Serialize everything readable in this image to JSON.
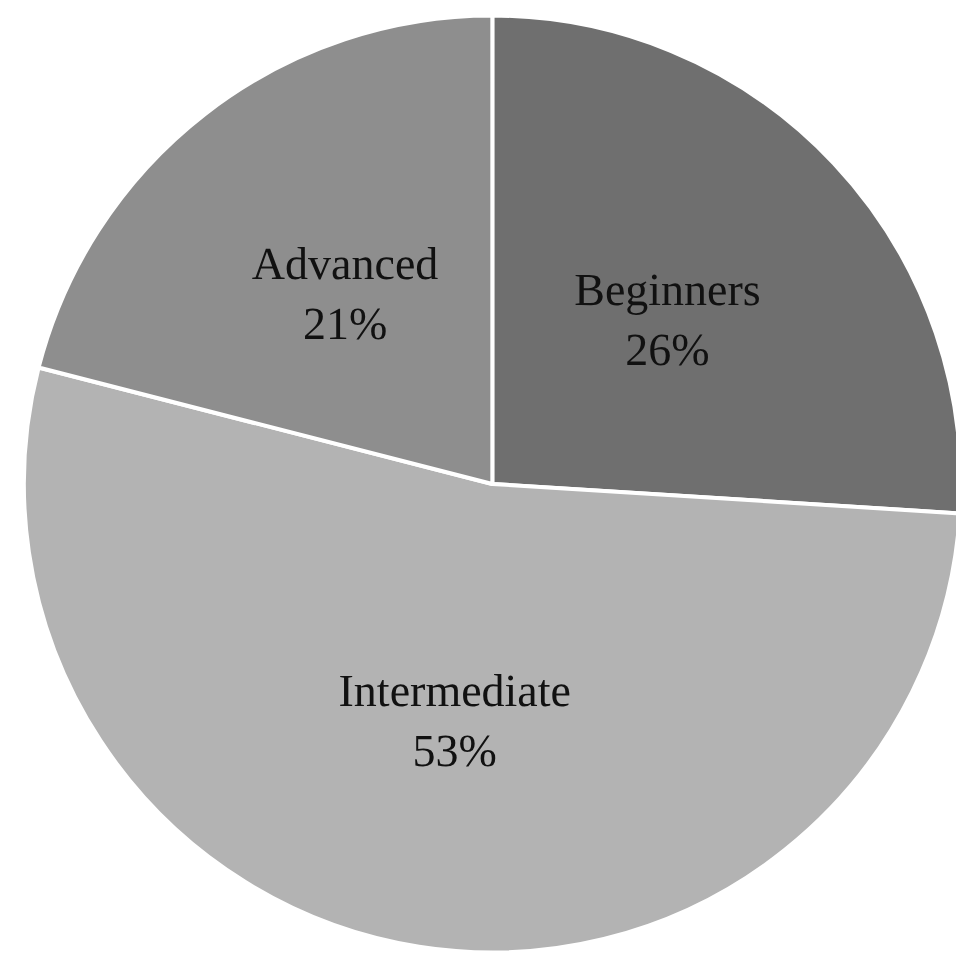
{
  "chart_data": {
    "type": "pie",
    "categories": [
      "Beginners",
      "Intermediate",
      "Advanced"
    ],
    "values": [
      26,
      53,
      21
    ],
    "colors": [
      "#6f6f6f",
      "#b3b3b3",
      "#8e8e8e"
    ],
    "value_labels": [
      "26%",
      "53%",
      "21%"
    ],
    "legend": false
  }
}
